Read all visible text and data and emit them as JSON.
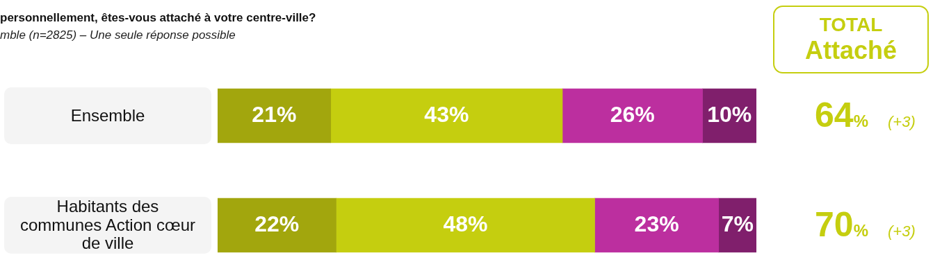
{
  "chart_data": {
    "type": "bar",
    "orientation": "horizontal",
    "stacked": true,
    "title": "personnellement, êtes-vous attaché à votre centre-ville?",
    "subtitle": "mble (n=2825) – Une seule réponse possible",
    "categories": [
      "Ensemble",
      "Habitants des communes Action cœur de ville"
    ],
    "xlim": [
      0,
      100
    ],
    "tick_labels": false,
    "series": [
      {
        "color": "#a2a60d",
        "values": [
          21,
          22
        ],
        "value_labels": [
          "21%",
          "22%"
        ]
      },
      {
        "color": "#c5ce0f",
        "values": [
          43,
          48
        ],
        "value_labels": [
          "43%",
          "48%"
        ]
      },
      {
        "color": "#bc2f9f",
        "values": [
          26,
          23
        ],
        "value_labels": [
          "26%",
          "23%"
        ]
      },
      {
        "color": "#801f6c",
        "values": [
          10,
          7
        ],
        "value_labels": [
          "10%",
          "7%"
        ]
      }
    ],
    "annotations": [
      "TOTAL",
      "Attaché",
      "64%",
      "(+3)",
      "70%",
      "(+3)"
    ]
  }
}
